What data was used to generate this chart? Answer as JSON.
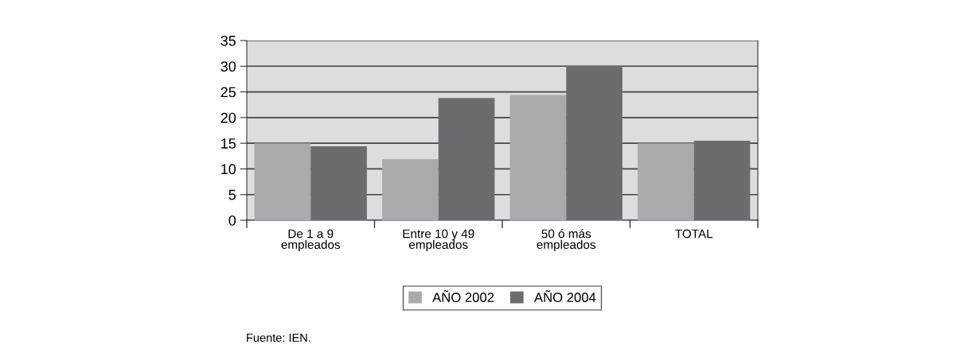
{
  "chart_data": {
    "type": "bar",
    "categories": [
      "De 1 a 9\nempleados",
      "Entre 10 y 49\nempleados",
      "50 ó más\nempleados",
      "TOTAL"
    ],
    "series": [
      {
        "name": "AÑO 2002",
        "color": "#a9aaad",
        "values": [
          15.0,
          11.9,
          24.4,
          15.0
        ]
      },
      {
        "name": "AÑO 2004",
        "color": "#6b6c70",
        "values": [
          14.4,
          23.8,
          30.1,
          15.5
        ]
      }
    ],
    "ylim": [
      0,
      35
    ],
    "yticks": [
      0,
      5,
      10,
      15,
      20,
      25,
      30,
      35
    ],
    "grid": "y",
    "legend": "bottom",
    "annotations": [
      "Fuente: IEN."
    ]
  }
}
